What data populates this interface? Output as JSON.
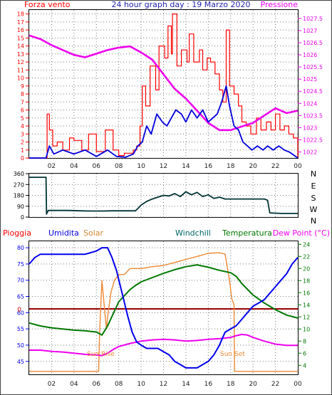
{
  "header": {
    "left_label": "Forza vento",
    "title": "24 hour graph day : 19 Marzo 2020",
    "right_label": "Pressione"
  },
  "row_labels": {
    "pioggia": "Pioggia",
    "umidita": "Umidita",
    "solar": "Solar",
    "windchill": "Windchill",
    "temperatura": "Temperatura",
    "dewpoint": "Dew Point (°C)"
  },
  "annotations": {
    "sunrise": "Sun Rise",
    "sunset": "Sun Set"
  },
  "colors": {
    "wind_gust": "#ff0000",
    "wind_avg": "#0000dd",
    "pressure": "#ee00ee",
    "direction": "#003333",
    "humidity": "#0000ee",
    "solar": "#ee8833",
    "temperature": "#007700",
    "dewpoint": "#ee00ee",
    "rain": "#990000",
    "axis_left_wind": "#ff0000",
    "axis_left_bottom": "#0000ee",
    "axis_right_bottom": "#007700"
  },
  "chart_data": [
    {
      "type": "line",
      "name": "wind-pressure",
      "x_ticks": [
        "02",
        "04",
        "06",
        "08",
        "10",
        "12",
        "14",
        "16",
        "18",
        "20",
        "22",
        "00"
      ],
      "x_hours": [
        2,
        4,
        6,
        8,
        10,
        12,
        14,
        16,
        18,
        20,
        22,
        24
      ],
      "y_left_ticks": [
        "0",
        "1",
        "2",
        "3",
        "4",
        "5",
        "6",
        "7",
        "8",
        "9",
        "10",
        "11",
        "12",
        "13",
        "14",
        "15",
        "16",
        "17",
        "18"
      ],
      "ylim_left": [
        0,
        18.5
      ],
      "y_right_ticks": [
        "1022",
        "1022.5",
        "1023",
        "1023.5",
        "1024",
        "1024.5",
        "1025",
        "1025.5",
        "1026",
        "1026.5",
        "1027",
        "1027.5"
      ],
      "ylim_right": [
        1021.75,
        1027.85
      ],
      "series": [
        {
          "key": "gust",
          "x": [
            0,
            1.5,
            1.6,
            1.8,
            2.1,
            2.5,
            3.0,
            3.6,
            4.0,
            4.7,
            5.3,
            6.0,
            6.8,
            7.5,
            8.0,
            8.5,
            9.3,
            9.6,
            9.9,
            10.1,
            10.4,
            10.8,
            11.3,
            11.6,
            12.1,
            12.4,
            12.7,
            12.8,
            13.2,
            13.6,
            14.1,
            14.3,
            14.7,
            15.2,
            15.5,
            15.9,
            16.2,
            16.6,
            17.0,
            17.3,
            17.6,
            17.9,
            18.3,
            18.7,
            19.0,
            19.4,
            19.8,
            20.3,
            20.7,
            21.2,
            21.6,
            22.0,
            22.4,
            22.8,
            23.2,
            23.6,
            24.0
          ],
          "y": [
            0,
            0,
            5.5,
            3.5,
            1.5,
            2.0,
            1.0,
            2.5,
            2.2,
            1.0,
            3.0,
            0.8,
            3.5,
            1.0,
            0.3,
            0.6,
            1.0,
            1.5,
            4.0,
            9.0,
            6.5,
            11.5,
            8.5,
            14.0,
            12.5,
            16.5,
            13.0,
            18.0,
            11.5,
            13.5,
            12.0,
            15.5,
            12.0,
            13.5,
            11.0,
            12.5,
            12.0,
            10.5,
            8.5,
            7.0,
            16.0,
            9.0,
            8.0,
            6.5,
            4.5,
            4.0,
            3.0,
            5.0,
            3.5,
            4.5,
            3.5,
            5.5,
            3.5,
            4.0,
            3.0,
            2.5,
            0
          ]
        },
        {
          "key": "avg",
          "x": [
            0,
            1.5,
            1.8,
            2.2,
            3.0,
            4.0,
            5.0,
            6.0,
            7.0,
            7.8,
            8.6,
            9.3,
            9.7,
            10.1,
            10.5,
            10.9,
            11.4,
            11.9,
            12.3,
            12.7,
            13.1,
            13.6,
            14.0,
            14.5,
            15.0,
            15.5,
            16.0,
            16.4,
            16.8,
            17.2,
            17.6,
            17.9,
            18.3,
            18.7,
            19.1,
            19.5,
            19.9,
            20.4,
            20.9,
            21.3,
            21.8,
            22.3,
            22.8,
            23.3,
            23.7,
            24.0
          ],
          "y": [
            0,
            0,
            1.5,
            0.5,
            1.0,
            0.5,
            1.0,
            0.2,
            1.0,
            0.2,
            0.1,
            0.5,
            1.5,
            2.0,
            4.0,
            3.0,
            5.5,
            4.5,
            4.0,
            5.0,
            6.0,
            5.5,
            4.5,
            6.0,
            5.0,
            6.0,
            4.5,
            5.0,
            5.5,
            7.0,
            9.0,
            6.5,
            4.0,
            3.5,
            2.0,
            1.5,
            1.0,
            1.5,
            1.0,
            1.5,
            1.0,
            1.5,
            1.0,
            0.7,
            0.3,
            0
          ]
        },
        {
          "key": "pressure",
          "x": [
            0,
            1,
            2,
            3,
            4,
            5,
            6,
            7,
            8,
            9,
            10,
            11,
            12,
            13,
            14,
            15,
            16,
            17,
            18,
            19,
            20,
            21,
            22,
            23,
            24
          ],
          "y": [
            1026.8,
            1026.65,
            1026.4,
            1026.2,
            1026.0,
            1025.9,
            1026.05,
            1026.2,
            1026.3,
            1026.35,
            1026.1,
            1025.8,
            1025.2,
            1024.6,
            1024.2,
            1023.7,
            1023.2,
            1022.9,
            1022.9,
            1023.05,
            1023.2,
            1023.5,
            1023.8,
            1023.6,
            1023.7
          ]
        }
      ]
    },
    {
      "type": "line",
      "name": "wind-direction",
      "x_hours": [
        2,
        4,
        6,
        8,
        10,
        12,
        14,
        16,
        18,
        20,
        22,
        24
      ],
      "y_ticks": [
        "0",
        "90",
        "180",
        "270",
        "360"
      ],
      "ylim": [
        0,
        360
      ],
      "compass": [
        "N",
        "W",
        "S",
        "E",
        "N"
      ],
      "series": [
        {
          "key": "direction",
          "x": [
            0,
            1.5,
            1.55,
            1.7,
            2.5,
            3.5,
            4.5,
            5.5,
            6.5,
            7.5,
            8.5,
            9.5,
            9.7,
            10.0,
            10.5,
            11.0,
            11.5,
            12.0,
            12.5,
            13.0,
            13.5,
            14.0,
            14.5,
            15.0,
            15.5,
            16.0,
            16.5,
            17.0,
            17.5,
            18.0,
            18.5,
            19.0,
            19.5,
            20.0,
            21.0,
            21.3,
            21.5,
            22.5,
            23.5,
            24.0
          ],
          "y": [
            330,
            330,
            25,
            55,
            55,
            55,
            52,
            50,
            50,
            52,
            52,
            52,
            70,
            100,
            130,
            150,
            165,
            180,
            175,
            195,
            170,
            210,
            185,
            205,
            170,
            185,
            155,
            165,
            150,
            150,
            150,
            150,
            150,
            150,
            150,
            140,
            35,
            30,
            30,
            30
          ]
        }
      ]
    },
    {
      "type": "line",
      "name": "humidity-temperature",
      "x_ticks": [
        "02",
        "04",
        "06",
        "08",
        "10",
        "12",
        "14",
        "16",
        "18",
        "20",
        "22",
        "00"
      ],
      "x_hours": [
        2,
        4,
        6,
        8,
        10,
        12,
        14,
        16,
        18,
        20,
        22,
        24
      ],
      "y_left_ticks": [
        "45",
        "50",
        "55",
        "60",
        "65",
        "70",
        "75",
        "80"
      ],
      "ylim_left": [
        41,
        82
      ],
      "y_right_ticks": [
        "4",
        "6",
        "8",
        "10",
        "12",
        "14",
        "16",
        "18",
        "20",
        "22",
        "24"
      ],
      "ylim_right": [
        2.5,
        24.5
      ],
      "rain_marker": "0",
      "series": [
        {
          "key": "humidity",
          "x": [
            0,
            0.5,
            1,
            2,
            3,
            4,
            5,
            6,
            6.5,
            7.0,
            7.4,
            7.8,
            8.3,
            8.8,
            9.2,
            9.6,
            10.0,
            10.5,
            11.0,
            11.5,
            12.0,
            12.5,
            13.0,
            13.5,
            14.0,
            14.5,
            15.0,
            15.5,
            16.0,
            16.5,
            17.0,
            17.5,
            18.0,
            18.5,
            19.0,
            19.5,
            20.0,
            20.5,
            21.0,
            21.5,
            22.0,
            22.5,
            23.0,
            23.5,
            24.0
          ],
          "y": [
            75,
            77,
            78,
            78,
            78,
            78,
            78,
            79,
            80,
            80,
            77,
            73,
            66,
            59,
            54,
            51,
            50,
            49,
            49,
            49,
            48,
            47,
            45,
            44,
            43,
            43,
            43,
            44,
            45,
            47,
            50,
            54,
            55,
            56,
            58,
            60,
            62,
            63,
            64,
            66,
            68,
            70,
            72,
            75,
            77
          ]
        },
        {
          "key": "solar",
          "x": [
            0,
            6.2,
            6.3,
            6.5,
            6.7,
            6.9,
            7.0,
            7.3,
            7.6,
            8.0,
            8.5,
            9.0,
            10.0,
            11.0,
            12.0,
            13.0,
            14.0,
            15.0,
            16.0,
            17.0,
            17.5,
            17.9,
            18.1,
            18.3,
            18.35,
            24.0
          ],
          "y": [
            3,
            3,
            10,
            18,
            14,
            10,
            12,
            16,
            18,
            19,
            19,
            20,
            20,
            20.3,
            20.5,
            21,
            21.5,
            22,
            22.5,
            22.6,
            22.4,
            18,
            15,
            14,
            3,
            3
          ]
        },
        {
          "key": "temperature",
          "x": [
            0,
            1,
            2,
            3,
            4,
            5,
            6,
            6.5,
            7.0,
            7.5,
            8.0,
            8.5,
            9.0,
            9.5,
            10.0,
            11.0,
            12.0,
            13.0,
            14.0,
            15.0,
            16.0,
            17.0,
            18.0,
            18.5,
            19.0,
            20.0,
            21.0,
            22.0,
            23.0,
            24.0
          ],
          "y": [
            11,
            10.5,
            10.2,
            10,
            9.8,
            9.7,
            9.5,
            9.0,
            10.5,
            12.5,
            14.5,
            15.5,
            16.5,
            17.2,
            17.8,
            18.5,
            19.2,
            19.8,
            20.3,
            20.6,
            20.2,
            19.7,
            19.3,
            18.7,
            17.5,
            15.6,
            14.3,
            13.2,
            12.3,
            11.8
          ]
        },
        {
          "key": "dewpoint",
          "x": [
            0,
            1,
            2,
            3,
            4,
            5,
            6,
            6.5,
            7.0,
            7.5,
            8.0,
            9.0,
            10.0,
            11.0,
            12.0,
            13.0,
            14.0,
            15.0,
            16.0,
            17.0,
            18.0,
            18.5,
            19.0,
            19.5,
            20.0,
            21.0,
            22.0,
            23.0,
            24.0
          ],
          "y": [
            6.5,
            6.5,
            6.3,
            6.2,
            6.0,
            5.8,
            5.7,
            5.6,
            6.0,
            6.6,
            7.1,
            7.6,
            8.0,
            8.2,
            8.3,
            8.2,
            8.0,
            8.1,
            8.3,
            8.4,
            8.6,
            8.9,
            9.1,
            9.0,
            8.6,
            8.0,
            7.5,
            7.3,
            7.3
          ]
        }
      ]
    }
  ]
}
